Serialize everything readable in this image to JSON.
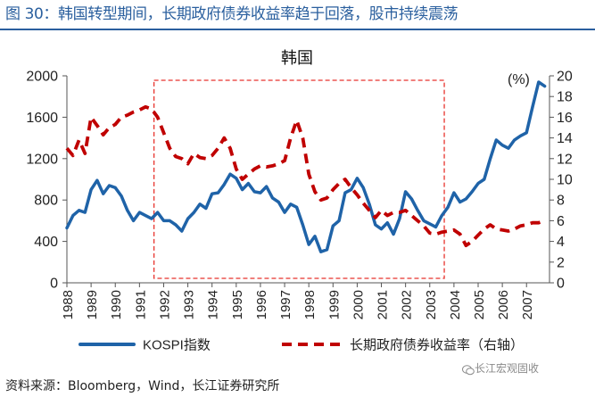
{
  "figure_title": "图 30：韩国转型期间，长期政府债券收益率趋于回落，股市持续震荡",
  "source_note": "资料来源：Bloomberg，Wind，长江证券研究所",
  "watermark": "长江宏观固收",
  "watermark_icon": "wechat-icon",
  "colors": {
    "kospi": "#1f63a8",
    "yield": "#c00000",
    "highlight_box": "#e8332d",
    "title": "#2a5f9e"
  },
  "chart_data": {
    "type": "line",
    "title": "韩国",
    "right_axis_unit": "(%)",
    "x_categories": [
      "1988",
      "1989",
      "1990",
      "1991",
      "1992",
      "1993",
      "1994",
      "1995",
      "1996",
      "1997",
      "1998",
      "1999",
      "2000",
      "2001",
      "2002",
      "2003",
      "2004",
      "2005",
      "2006",
      "2007"
    ],
    "left_axis": {
      "min": 0,
      "max": 2000,
      "ticks": [
        0,
        400,
        800,
        1200,
        1600,
        2000
      ]
    },
    "right_axis": {
      "min": 0,
      "max": 20,
      "ticks": [
        0,
        2,
        4,
        6,
        8,
        10,
        12,
        14,
        16,
        18,
        20
      ]
    },
    "grid": false,
    "legend_position": "bottom",
    "highlight_period": {
      "start": 1991.6,
      "end": 2003.6
    },
    "series": [
      {
        "name": "KOSPI指数",
        "axis": "left",
        "style": "solid",
        "points": [
          [
            1988.0,
            530
          ],
          [
            1988.25,
            650
          ],
          [
            1988.5,
            700
          ],
          [
            1988.75,
            680
          ],
          [
            1989.0,
            900
          ],
          [
            1989.25,
            990
          ],
          [
            1989.5,
            860
          ],
          [
            1989.75,
            940
          ],
          [
            1990.0,
            920
          ],
          [
            1990.25,
            840
          ],
          [
            1990.5,
            700
          ],
          [
            1990.75,
            600
          ],
          [
            1991.0,
            680
          ],
          [
            1991.25,
            650
          ],
          [
            1991.5,
            620
          ],
          [
            1991.75,
            680
          ],
          [
            1992.0,
            600
          ],
          [
            1992.25,
            600
          ],
          [
            1992.5,
            560
          ],
          [
            1992.75,
            500
          ],
          [
            1993.0,
            620
          ],
          [
            1993.25,
            680
          ],
          [
            1993.5,
            760
          ],
          [
            1993.75,
            720
          ],
          [
            1994.0,
            860
          ],
          [
            1994.25,
            870
          ],
          [
            1994.5,
            950
          ],
          [
            1994.75,
            1050
          ],
          [
            1995.0,
            1010
          ],
          [
            1995.25,
            900
          ],
          [
            1995.5,
            960
          ],
          [
            1995.75,
            880
          ],
          [
            1996.0,
            870
          ],
          [
            1996.25,
            930
          ],
          [
            1996.5,
            820
          ],
          [
            1996.75,
            780
          ],
          [
            1997.0,
            680
          ],
          [
            1997.25,
            760
          ],
          [
            1997.5,
            730
          ],
          [
            1997.75,
            560
          ],
          [
            1998.0,
            370
          ],
          [
            1998.25,
            450
          ],
          [
            1998.5,
            300
          ],
          [
            1998.75,
            320
          ],
          [
            1999.0,
            550
          ],
          [
            1999.25,
            600
          ],
          [
            1999.5,
            870
          ],
          [
            1999.75,
            900
          ],
          [
            2000.0,
            1010
          ],
          [
            2000.25,
            920
          ],
          [
            2000.5,
            760
          ],
          [
            2000.75,
            560
          ],
          [
            2001.0,
            520
          ],
          [
            2001.25,
            580
          ],
          [
            2001.5,
            470
          ],
          [
            2001.75,
            620
          ],
          [
            2002.0,
            880
          ],
          [
            2002.25,
            810
          ],
          [
            2002.5,
            700
          ],
          [
            2002.75,
            600
          ],
          [
            2003.0,
            570
          ],
          [
            2003.25,
            540
          ],
          [
            2003.5,
            650
          ],
          [
            2003.75,
            730
          ],
          [
            2004.0,
            870
          ],
          [
            2004.25,
            780
          ],
          [
            2004.5,
            810
          ],
          [
            2004.75,
            880
          ],
          [
            2005.0,
            960
          ],
          [
            2005.25,
            1000
          ],
          [
            2005.5,
            1200
          ],
          [
            2005.75,
            1380
          ],
          [
            2006.0,
            1330
          ],
          [
            2006.25,
            1300
          ],
          [
            2006.5,
            1380
          ],
          [
            2006.75,
            1420
          ],
          [
            2007.0,
            1450
          ],
          [
            2007.25,
            1700
          ],
          [
            2007.5,
            1940
          ],
          [
            2007.75,
            1900
          ]
        ]
      },
      {
        "name": "长期政府债券收益率（右轴）",
        "axis": "right",
        "style": "dashed",
        "points": [
          [
            1988.0,
            13
          ],
          [
            1988.25,
            12.3
          ],
          [
            1988.5,
            13.8
          ],
          [
            1988.75,
            12.5
          ],
          [
            1989.0,
            16
          ],
          [
            1989.25,
            15.2
          ],
          [
            1989.5,
            14.3
          ],
          [
            1989.75,
            15.0
          ],
          [
            1990.0,
            15.3
          ],
          [
            1990.25,
            16.0
          ],
          [
            1990.5,
            16.2
          ],
          [
            1990.75,
            16.5
          ],
          [
            1991.0,
            16.7
          ],
          [
            1991.25,
            17.0
          ],
          [
            1991.5,
            16.8
          ],
          [
            1991.75,
            16.0
          ],
          [
            1992.0,
            14.5
          ],
          [
            1992.25,
            13.0
          ],
          [
            1992.5,
            12.2
          ],
          [
            1992.75,
            12.0
          ],
          [
            1993.0,
            11.5
          ],
          [
            1993.25,
            12.5
          ],
          [
            1993.5,
            12.1
          ],
          [
            1993.75,
            12.0
          ],
          [
            1994.0,
            12.3
          ],
          [
            1994.25,
            13.0
          ],
          [
            1994.5,
            14.0
          ],
          [
            1994.75,
            13.0
          ],
          [
            1995.0,
            11.0
          ],
          [
            1995.25,
            10.0
          ],
          [
            1995.5,
            10.5
          ],
          [
            1995.75,
            11.0
          ],
          [
            1996.0,
            11.3
          ],
          [
            1996.25,
            11.2
          ],
          [
            1996.5,
            11.3
          ],
          [
            1996.75,
            11.5
          ],
          [
            1997.0,
            11.8
          ],
          [
            1997.25,
            14.0
          ],
          [
            1997.5,
            15.7
          ],
          [
            1997.75,
            14.0
          ],
          [
            1998.0,
            10.5
          ],
          [
            1998.25,
            8.8
          ],
          [
            1998.5,
            8.0
          ],
          [
            1998.75,
            8.2
          ],
          [
            1999.0,
            9.0
          ],
          [
            1999.25,
            9.6
          ],
          [
            1999.5,
            10.0
          ],
          [
            1999.75,
            9.2
          ],
          [
            2000.0,
            8.5
          ],
          [
            2000.25,
            7.7
          ],
          [
            2000.5,
            7.0
          ],
          [
            2000.75,
            6.3
          ],
          [
            2001.0,
            7.0
          ],
          [
            2001.25,
            6.5
          ],
          [
            2001.5,
            6.8
          ],
          [
            2001.75,
            6.8
          ],
          [
            2002.0,
            7.0
          ],
          [
            2002.25,
            6.5
          ],
          [
            2002.5,
            6.0
          ],
          [
            2002.75,
            5.5
          ],
          [
            2003.0,
            4.8
          ],
          [
            2003.25,
            4.7
          ],
          [
            2003.5,
            4.9
          ],
          [
            2003.75,
            5.0
          ],
          [
            2004.0,
            5.1
          ],
          [
            2004.25,
            4.7
          ],
          [
            2004.5,
            3.6
          ],
          [
            2004.75,
            4.0
          ],
          [
            2005.0,
            4.6
          ],
          [
            2005.25,
            5.2
          ],
          [
            2005.5,
            5.6
          ],
          [
            2005.75,
            5.2
          ],
          [
            2006.0,
            5.1
          ],
          [
            2006.25,
            5.0
          ],
          [
            2006.5,
            5.2
          ],
          [
            2006.75,
            5.5
          ],
          [
            2007.0,
            5.6
          ],
          [
            2007.25,
            5.8
          ],
          [
            2007.5,
            5.8
          ],
          [
            2007.75,
            6.0
          ]
        ]
      }
    ]
  }
}
